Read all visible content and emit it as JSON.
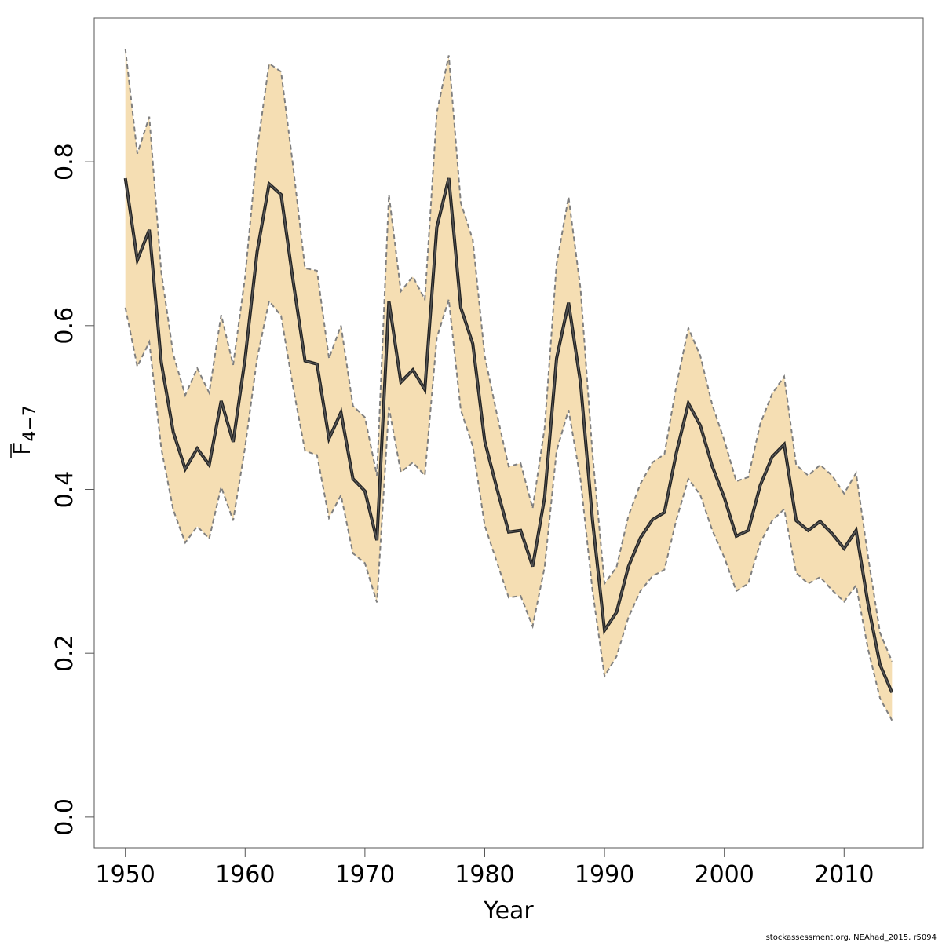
{
  "chart_data": {
    "type": "area",
    "xlabel": "Year",
    "ylabel_main": "F",
    "ylabel_sub": "4−7",
    "footnote": "stockassessment.org, NEAhad_2015, r5094",
    "xlim": [
      1947.4,
      2016.6
    ],
    "ylim": [
      -0.0375,
      0.9755
    ],
    "x_ticks": [
      1950,
      1960,
      1970,
      1980,
      1990,
      2000,
      2010
    ],
    "x_tick_labels": [
      "1950",
      "1960",
      "1970",
      "1980",
      "1990",
      "2000",
      "2010"
    ],
    "y_ticks": [
      0.0,
      0.2,
      0.4,
      0.6,
      0.8
    ],
    "y_tick_labels": [
      "0.0",
      "0.2",
      "0.4",
      "0.6",
      "0.8"
    ],
    "colors": {
      "band": "#f5deb3",
      "line": "#555555",
      "bound": "#7f7f7f"
    },
    "x": [
      1950,
      1951,
      1952,
      1953,
      1954,
      1955,
      1956,
      1957,
      1958,
      1959,
      1960,
      1961,
      1962,
      1963,
      1964,
      1965,
      1966,
      1967,
      1968,
      1969,
      1970,
      1971,
      1972,
      1973,
      1974,
      1975,
      1976,
      1977,
      1978,
      1979,
      1980,
      1981,
      1982,
      1983,
      1984,
      1985,
      1986,
      1987,
      1988,
      1989,
      1990,
      1991,
      1992,
      1993,
      1994,
      1995,
      1996,
      1997,
      1998,
      1999,
      2000,
      2001,
      2002,
      2003,
      2004,
      2005,
      2006,
      2007,
      2008,
      2009,
      2010,
      2011,
      2012,
      2013,
      2014
    ],
    "series": [
      {
        "name": "estimate",
        "values": [
          0.78,
          0.68,
          0.717,
          0.555,
          0.47,
          0.425,
          0.45,
          0.43,
          0.508,
          0.458,
          0.56,
          0.69,
          0.773,
          0.76,
          0.655,
          0.557,
          0.553,
          0.462,
          0.494,
          0.413,
          0.398,
          0.338,
          0.63,
          0.531,
          0.546,
          0.522,
          0.72,
          0.78,
          0.622,
          0.578,
          0.459,
          0.402,
          0.348,
          0.35,
          0.306,
          0.39,
          0.56,
          0.628,
          0.53,
          0.362,
          0.228,
          0.25,
          0.306,
          0.341,
          0.363,
          0.372,
          0.445,
          0.505,
          0.478,
          0.428,
          0.39,
          0.343,
          0.35,
          0.405,
          0.44,
          0.455,
          0.362,
          0.35,
          0.361,
          0.346,
          0.328,
          0.35,
          0.26,
          0.186,
          0.152
        ]
      },
      {
        "name": "upper",
        "values": [
          0.938,
          0.81,
          0.855,
          0.665,
          0.565,
          0.515,
          0.548,
          0.518,
          0.613,
          0.552,
          0.66,
          0.815,
          0.92,
          0.91,
          0.795,
          0.67,
          0.667,
          0.56,
          0.6,
          0.502,
          0.488,
          0.417,
          0.76,
          0.642,
          0.66,
          0.632,
          0.86,
          0.93,
          0.75,
          0.705,
          0.563,
          0.493,
          0.428,
          0.432,
          0.377,
          0.475,
          0.675,
          0.757,
          0.645,
          0.443,
          0.285,
          0.305,
          0.368,
          0.407,
          0.433,
          0.443,
          0.527,
          0.597,
          0.563,
          0.503,
          0.46,
          0.41,
          0.415,
          0.48,
          0.517,
          0.538,
          0.43,
          0.417,
          0.43,
          0.417,
          0.395,
          0.42,
          0.318,
          0.225,
          0.19
        ]
      },
      {
        "name": "lower",
        "values": [
          0.622,
          0.55,
          0.58,
          0.45,
          0.375,
          0.335,
          0.355,
          0.34,
          0.403,
          0.362,
          0.452,
          0.56,
          0.63,
          0.612,
          0.525,
          0.447,
          0.442,
          0.365,
          0.393,
          0.322,
          0.31,
          0.262,
          0.5,
          0.421,
          0.433,
          0.417,
          0.585,
          0.632,
          0.497,
          0.453,
          0.356,
          0.312,
          0.268,
          0.27,
          0.233,
          0.305,
          0.447,
          0.497,
          0.412,
          0.276,
          0.172,
          0.196,
          0.244,
          0.276,
          0.294,
          0.302,
          0.363,
          0.413,
          0.393,
          0.35,
          0.317,
          0.276,
          0.285,
          0.335,
          0.362,
          0.376,
          0.298,
          0.285,
          0.293,
          0.277,
          0.263,
          0.283,
          0.205,
          0.145,
          0.118
        ]
      }
    ]
  }
}
